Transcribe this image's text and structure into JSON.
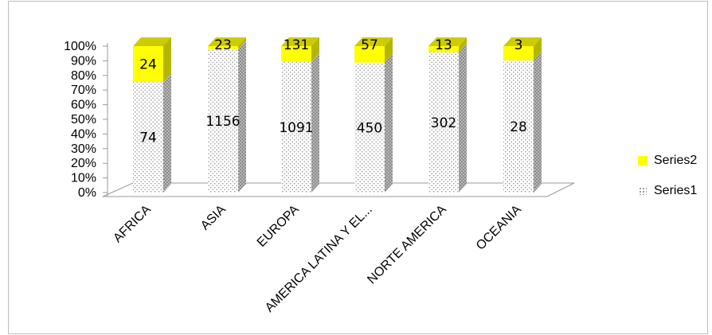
{
  "chart_data": {
    "type": "bar",
    "stacked": "percent",
    "categories": [
      "AFRICA",
      "ASIA",
      "EUROPA",
      "AMERICA LATINA Y EL...",
      "NORTE AMERICA",
      "OCEANIA"
    ],
    "series": [
      {
        "name": "Series1",
        "values": [
          74,
          1156,
          1091,
          450,
          302,
          28
        ],
        "pattern": "dotted"
      },
      {
        "name": "Series2",
        "values": [
          24,
          23,
          131,
          57,
          13,
          3
        ],
        "color": "#ffff00"
      }
    ],
    "y_tick_labels": [
      "0%",
      "10%",
      "20%",
      "30%",
      "40%",
      "50%",
      "60%",
      "70%",
      "80%",
      "90%",
      "100%"
    ],
    "ylim": [
      0,
      1
    ],
    "title": "",
    "xlabel": "",
    "ylabel": "",
    "legend_position": "right",
    "grid": false,
    "style": "3d-columns"
  }
}
